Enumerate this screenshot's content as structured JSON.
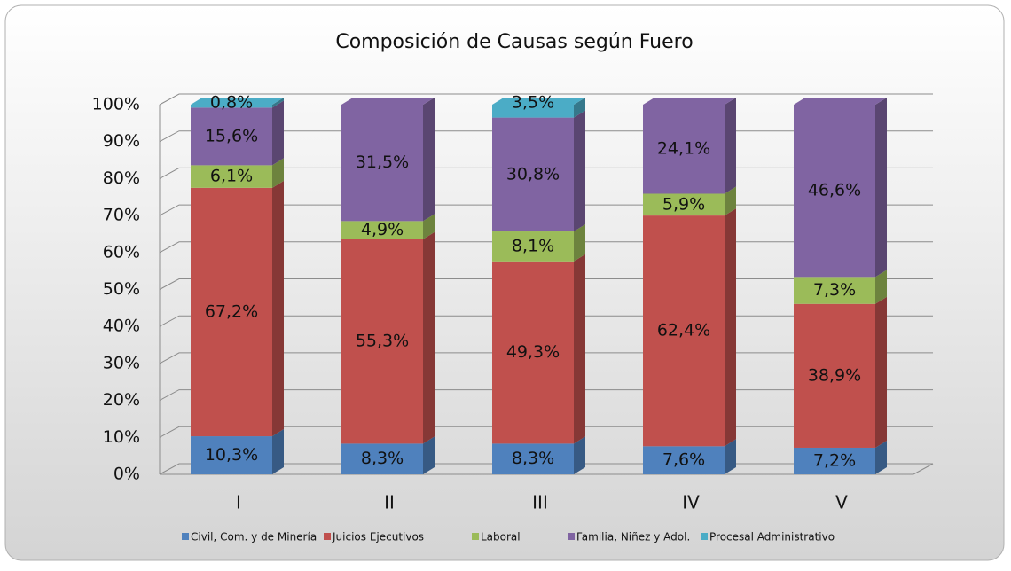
{
  "chart_data": {
    "type": "stacked_bar_3d",
    "title": "Composición  de Causas según Fuero",
    "categories": [
      "I",
      "II",
      "III",
      "IV",
      "V"
    ],
    "series": [
      {
        "name": "Civil, Com. y de Minería",
        "color": "#4f81bd",
        "values": [
          10.3,
          8.3,
          8.3,
          7.6,
          7.2
        ],
        "value_labels": [
          "10,3%",
          "8,3%",
          "8,3%",
          "7,6%",
          "7,2%"
        ]
      },
      {
        "name": "Juicios Ejecutivos",
        "color": "#c0504d",
        "values": [
          67.2,
          55.3,
          49.3,
          62.4,
          38.9
        ],
        "value_labels": [
          "67,2%",
          "55,3%",
          "49,3%",
          "62,4%",
          "38,9%"
        ]
      },
      {
        "name": "Laboral",
        "color": "#9bbb59",
        "values": [
          6.1,
          4.9,
          8.1,
          5.9,
          7.3
        ],
        "value_labels": [
          "6,1%",
          "4,9%",
          "8,1%",
          "5,9%",
          "7,3%"
        ]
      },
      {
        "name": "Familia, Niñez y Adol.",
        "color": "#8064a2",
        "values": [
          15.6,
          31.5,
          30.8,
          24.1,
          46.6
        ],
        "value_labels": [
          "15,6%",
          "31,5%",
          "30,8%",
          "24,1%",
          "46,6%"
        ]
      },
      {
        "name": "Procesal Administrativo",
        "color": "#4bacc6",
        "values": [
          0.8,
          0,
          3.5,
          0,
          0
        ],
        "value_labels": [
          "0,8%",
          null,
          "3,5%",
          null,
          null
        ]
      }
    ],
    "ylim": [
      0,
      100
    ],
    "yticks": [
      {
        "value": 0,
        "label": "0%"
      },
      {
        "value": 10,
        "label": "10%"
      },
      {
        "value": 20,
        "label": "20%"
      },
      {
        "value": 30,
        "label": "30%"
      },
      {
        "value": 40,
        "label": "40%"
      },
      {
        "value": 50,
        "label": "50%"
      },
      {
        "value": 60,
        "label": "60%"
      },
      {
        "value": 70,
        "label": "70%"
      },
      {
        "value": 80,
        "label": "80%"
      },
      {
        "value": 90,
        "label": "90%"
      },
      {
        "value": 100,
        "label": "100%"
      }
    ],
    "grid": true,
    "legend": "bottom"
  }
}
